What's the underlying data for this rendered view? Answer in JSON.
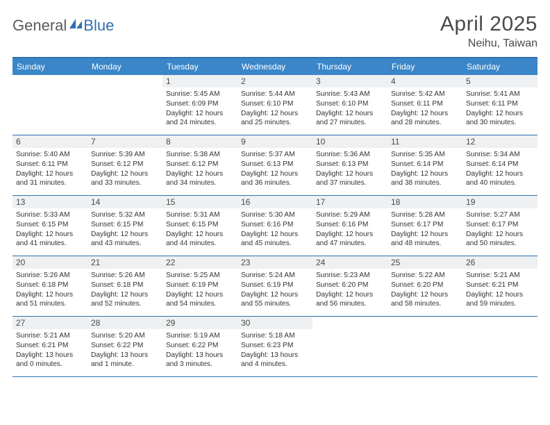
{
  "brand": {
    "part1": "General",
    "part2": "Blue"
  },
  "title": "April 2025",
  "location": "Neihu, Taiwan",
  "colors": {
    "header_bar": "#3b86c8",
    "rule": "#2f6fb0",
    "daynum_bg": "#eef0f2",
    "text_dark": "#4a4a4a",
    "body_text": "#333333",
    "logo_gray": "#5a5a5a",
    "logo_blue": "#2f6fb0",
    "white": "#ffffff"
  },
  "days_of_week": [
    "Sunday",
    "Monday",
    "Tuesday",
    "Wednesday",
    "Thursday",
    "Friday",
    "Saturday"
  ],
  "layout": {
    "columns": 7,
    "rows": 5,
    "first_weekday_index": 2,
    "days_in_month": 30,
    "dow_fontsize": 12,
    "daynum_fontsize": 12,
    "body_fontsize": 10.2,
    "title_fontsize": 30,
    "location_fontsize": 16
  },
  "days": [
    {
      "n": 1,
      "sunrise": "5:45 AM",
      "sunset": "6:09 PM",
      "daylight": "12 hours and 24 minutes."
    },
    {
      "n": 2,
      "sunrise": "5:44 AM",
      "sunset": "6:10 PM",
      "daylight": "12 hours and 25 minutes."
    },
    {
      "n": 3,
      "sunrise": "5:43 AM",
      "sunset": "6:10 PM",
      "daylight": "12 hours and 27 minutes."
    },
    {
      "n": 4,
      "sunrise": "5:42 AM",
      "sunset": "6:11 PM",
      "daylight": "12 hours and 28 minutes."
    },
    {
      "n": 5,
      "sunrise": "5:41 AM",
      "sunset": "6:11 PM",
      "daylight": "12 hours and 30 minutes."
    },
    {
      "n": 6,
      "sunrise": "5:40 AM",
      "sunset": "6:11 PM",
      "daylight": "12 hours and 31 minutes."
    },
    {
      "n": 7,
      "sunrise": "5:39 AM",
      "sunset": "6:12 PM",
      "daylight": "12 hours and 33 minutes."
    },
    {
      "n": 8,
      "sunrise": "5:38 AM",
      "sunset": "6:12 PM",
      "daylight": "12 hours and 34 minutes."
    },
    {
      "n": 9,
      "sunrise": "5:37 AM",
      "sunset": "6:13 PM",
      "daylight": "12 hours and 36 minutes."
    },
    {
      "n": 10,
      "sunrise": "5:36 AM",
      "sunset": "6:13 PM",
      "daylight": "12 hours and 37 minutes."
    },
    {
      "n": 11,
      "sunrise": "5:35 AM",
      "sunset": "6:14 PM",
      "daylight": "12 hours and 38 minutes."
    },
    {
      "n": 12,
      "sunrise": "5:34 AM",
      "sunset": "6:14 PM",
      "daylight": "12 hours and 40 minutes."
    },
    {
      "n": 13,
      "sunrise": "5:33 AM",
      "sunset": "6:15 PM",
      "daylight": "12 hours and 41 minutes."
    },
    {
      "n": 14,
      "sunrise": "5:32 AM",
      "sunset": "6:15 PM",
      "daylight": "12 hours and 43 minutes."
    },
    {
      "n": 15,
      "sunrise": "5:31 AM",
      "sunset": "6:15 PM",
      "daylight": "12 hours and 44 minutes."
    },
    {
      "n": 16,
      "sunrise": "5:30 AM",
      "sunset": "6:16 PM",
      "daylight": "12 hours and 45 minutes."
    },
    {
      "n": 17,
      "sunrise": "5:29 AM",
      "sunset": "6:16 PM",
      "daylight": "12 hours and 47 minutes."
    },
    {
      "n": 18,
      "sunrise": "5:28 AM",
      "sunset": "6:17 PM",
      "daylight": "12 hours and 48 minutes."
    },
    {
      "n": 19,
      "sunrise": "5:27 AM",
      "sunset": "6:17 PM",
      "daylight": "12 hours and 50 minutes."
    },
    {
      "n": 20,
      "sunrise": "5:26 AM",
      "sunset": "6:18 PM",
      "daylight": "12 hours and 51 minutes."
    },
    {
      "n": 21,
      "sunrise": "5:26 AM",
      "sunset": "6:18 PM",
      "daylight": "12 hours and 52 minutes."
    },
    {
      "n": 22,
      "sunrise": "5:25 AM",
      "sunset": "6:19 PM",
      "daylight": "12 hours and 54 minutes."
    },
    {
      "n": 23,
      "sunrise": "5:24 AM",
      "sunset": "6:19 PM",
      "daylight": "12 hours and 55 minutes."
    },
    {
      "n": 24,
      "sunrise": "5:23 AM",
      "sunset": "6:20 PM",
      "daylight": "12 hours and 56 minutes."
    },
    {
      "n": 25,
      "sunrise": "5:22 AM",
      "sunset": "6:20 PM",
      "daylight": "12 hours and 58 minutes."
    },
    {
      "n": 26,
      "sunrise": "5:21 AM",
      "sunset": "6:21 PM",
      "daylight": "12 hours and 59 minutes."
    },
    {
      "n": 27,
      "sunrise": "5:21 AM",
      "sunset": "6:21 PM",
      "daylight": "13 hours and 0 minutes."
    },
    {
      "n": 28,
      "sunrise": "5:20 AM",
      "sunset": "6:22 PM",
      "daylight": "13 hours and 1 minute."
    },
    {
      "n": 29,
      "sunrise": "5:19 AM",
      "sunset": "6:22 PM",
      "daylight": "13 hours and 3 minutes."
    },
    {
      "n": 30,
      "sunrise": "5:18 AM",
      "sunset": "6:23 PM",
      "daylight": "13 hours and 4 minutes."
    }
  ],
  "labels": {
    "sunrise": "Sunrise:",
    "sunset": "Sunset:",
    "daylight": "Daylight:"
  }
}
